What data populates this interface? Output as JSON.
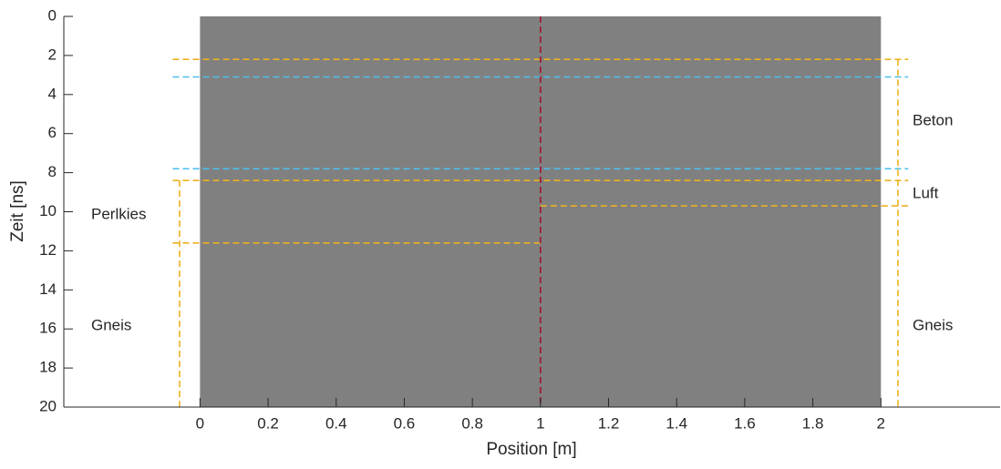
{
  "chart_data": {
    "type": "radargram",
    "xlabel": "Position [m]",
    "ylabel": "Zeit [ns]",
    "xlim": [
      -0.4,
      2.35
    ],
    "ylim": [
      0,
      20
    ],
    "y_direction": "reverse",
    "xticks": [
      0,
      0.2,
      0.4,
      0.6,
      0.8,
      1,
      1.2,
      1.4,
      1.6,
      1.8,
      2
    ],
    "yticks": [
      0,
      2,
      4,
      6,
      8,
      10,
      12,
      14,
      16,
      18,
      20
    ],
    "image": {
      "x": [
        0,
        2
      ],
      "y": [
        0,
        20
      ],
      "color": "#808080"
    },
    "horizontal_lines": [
      {
        "y": 2.2,
        "x": [
          -0.08,
          2.08
        ],
        "color": "#EDB120"
      },
      {
        "y": 3.1,
        "x": [
          -0.08,
          2.08
        ],
        "color": "#4DBEEE"
      },
      {
        "y": 7.8,
        "x": [
          -0.08,
          2.08
        ],
        "color": "#4DBEEE"
      },
      {
        "y": 8.4,
        "x": [
          -0.08,
          2.08
        ],
        "color": "#EDB120"
      },
      {
        "y": 11.6,
        "x": [
          -0.08,
          1
        ],
        "color": "#EDB120"
      },
      {
        "y": 9.7,
        "x": [
          1,
          2.08
        ],
        "color": "#EDB120"
      }
    ],
    "vertical_lines": [
      {
        "x": 1,
        "y": [
          0,
          20
        ],
        "color": "#A2142F"
      },
      {
        "x": -0.06,
        "y": [
          8.4,
          20
        ],
        "color": "#EDB120"
      },
      {
        "x": 2.05,
        "y": [
          2.2,
          20
        ],
        "color": "#EDB120"
      }
    ],
    "annotations": [
      "Perlkies",
      "Gneis",
      "Beton",
      "Luft",
      "Gneis"
    ]
  }
}
